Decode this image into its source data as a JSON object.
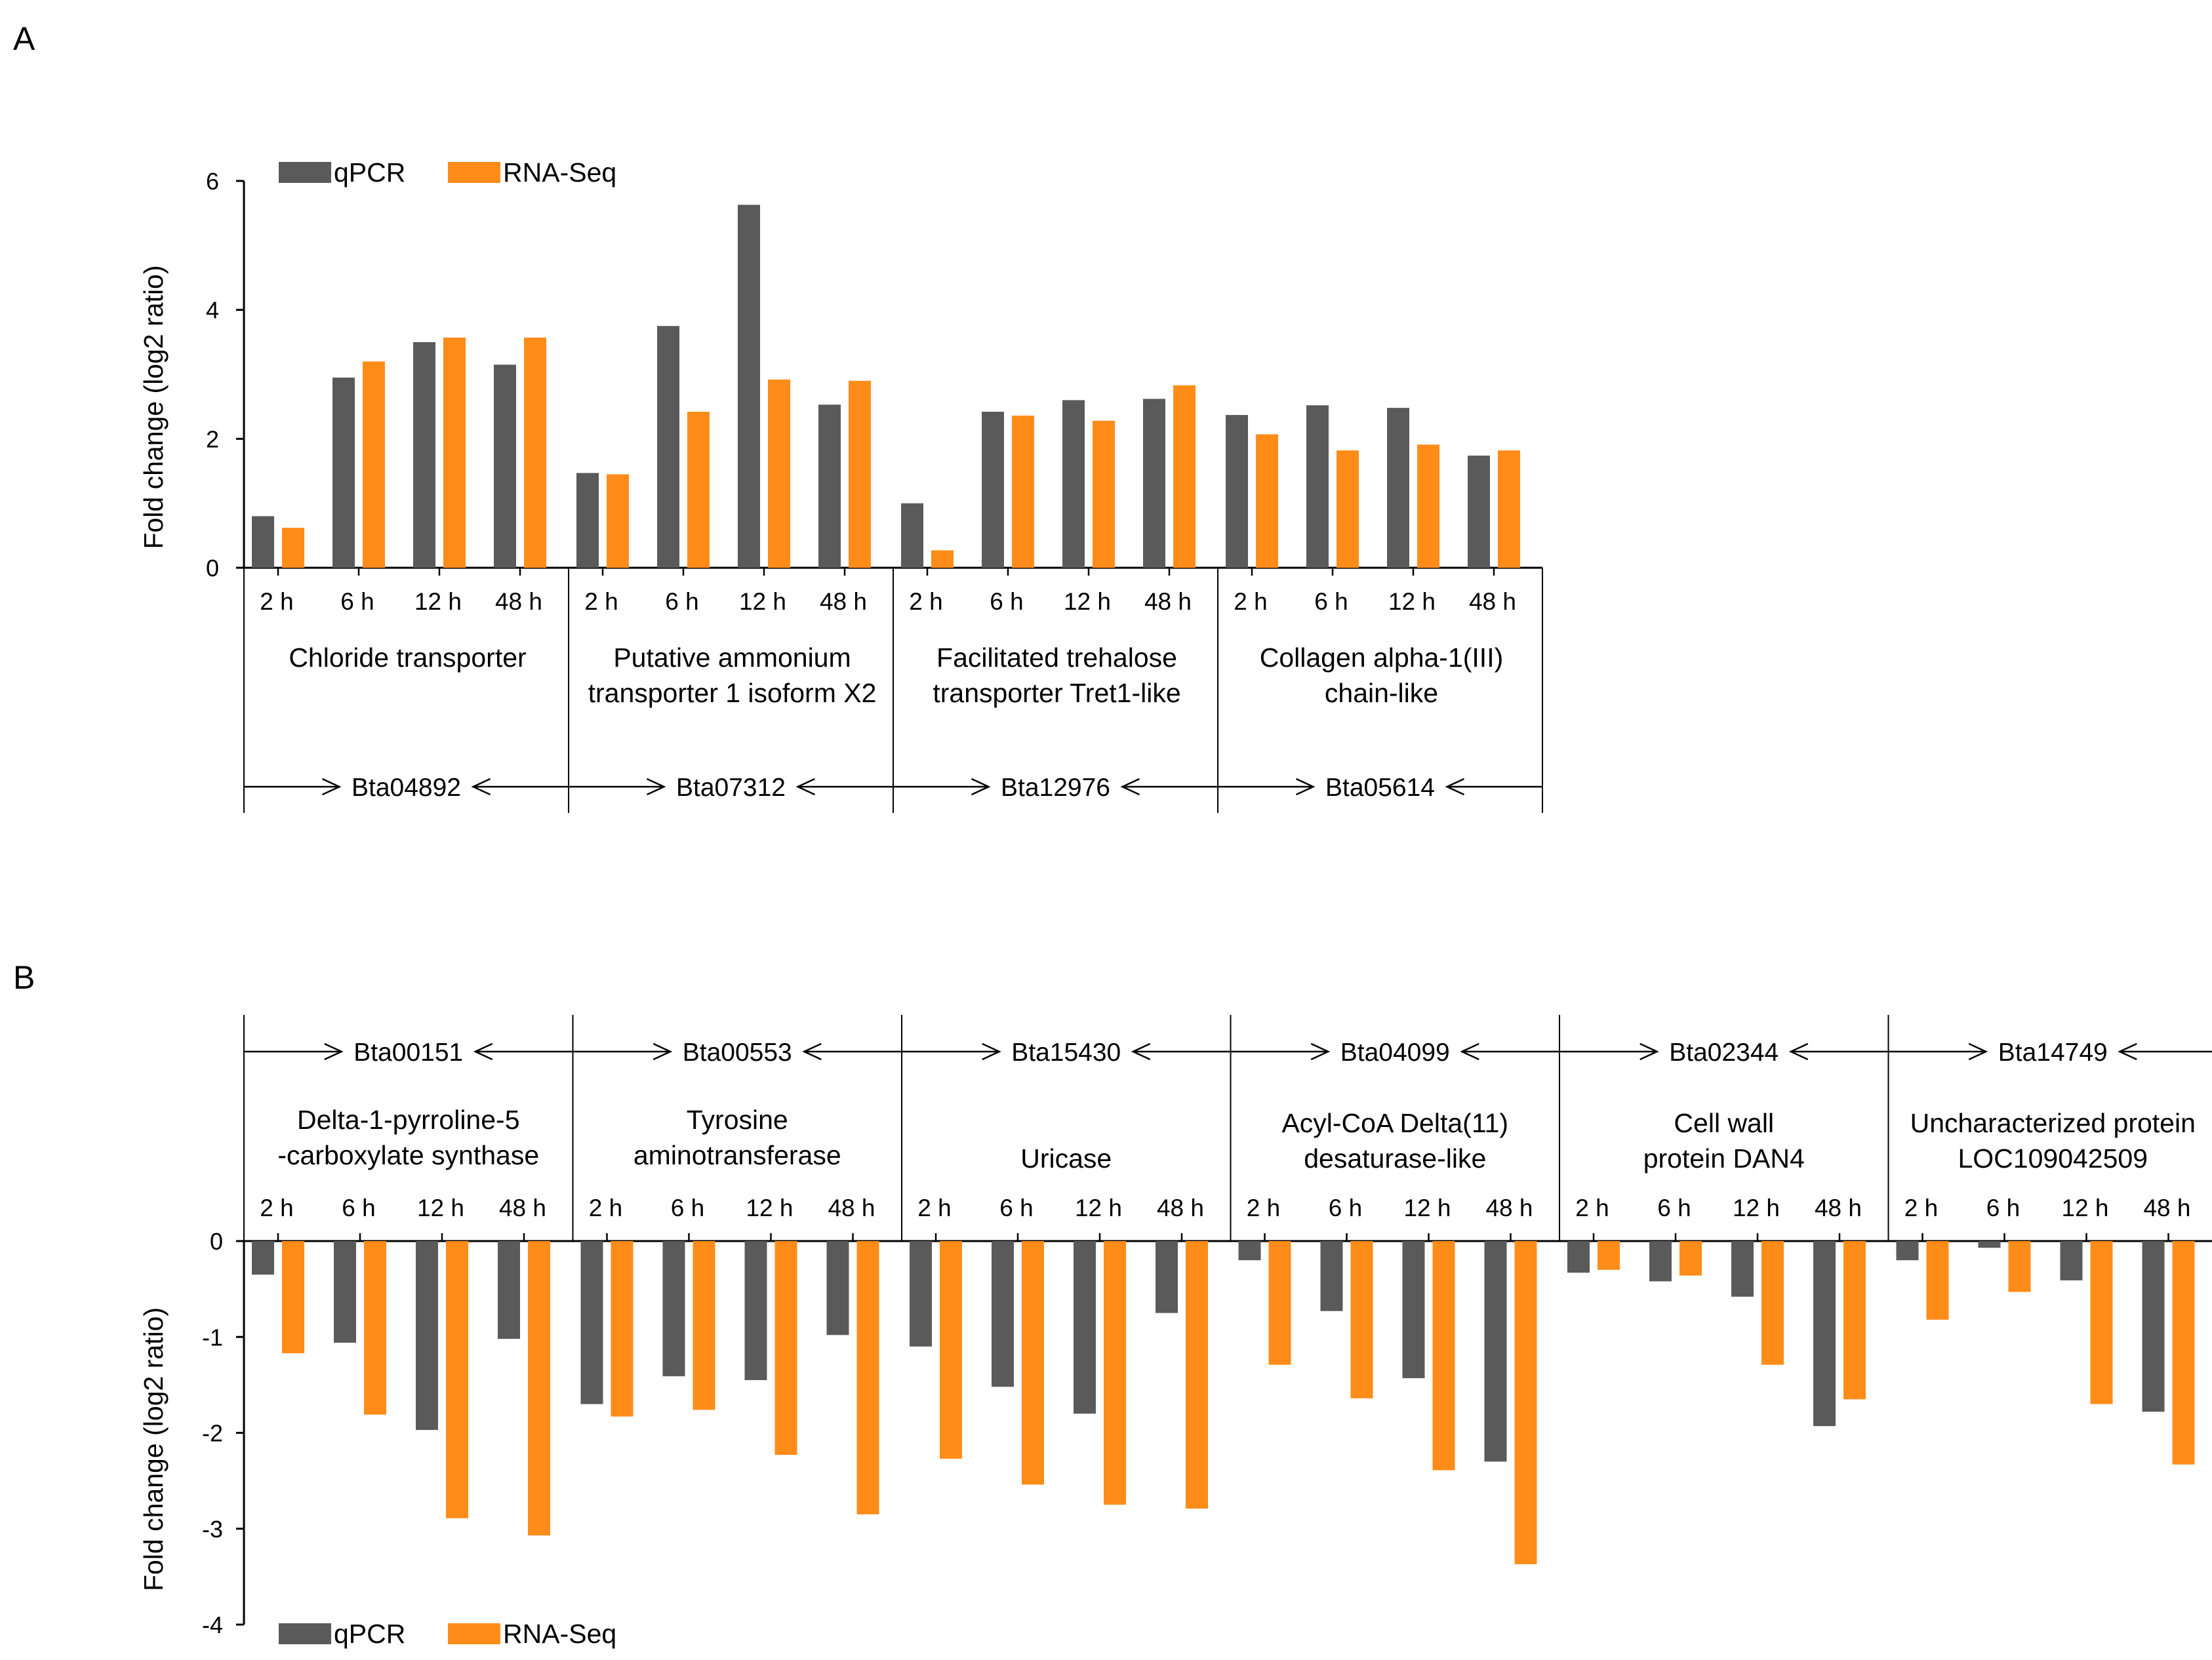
{
  "chart_data": [
    {
      "panel": "A",
      "type": "bar",
      "ylabel": "Fold change (log2 ratio)",
      "ylim": [
        0,
        6
      ],
      "yticks": [
        0,
        2,
        4,
        6
      ],
      "legend": [
        "qPCR",
        "RNA-Seq"
      ],
      "legend_position": "top-left",
      "colors": {
        "qPCR": "#5a5a5a",
        "RNA-Seq": "#ff8c19"
      },
      "timepoints": [
        "2 h",
        "6 h",
        "12 h",
        "48 h"
      ],
      "groups": [
        {
          "gene": "Bta04892",
          "description": [
            "Chloride transporter"
          ],
          "qPCR": [
            0.8,
            2.95,
            3.5,
            3.15
          ],
          "RNA-Seq": [
            0.62,
            3.2,
            3.57,
            3.57
          ]
        },
        {
          "gene": "Bta07312",
          "description": [
            "Putative ammonium",
            "transporter 1 isoform X2"
          ],
          "qPCR": [
            1.47,
            3.75,
            5.63,
            2.53
          ],
          "RNA-Seq": [
            1.45,
            2.42,
            2.92,
            2.9
          ]
        },
        {
          "gene": "Bta12976",
          "description": [
            "Facilitated trehalose",
            "transporter Tret1-like"
          ],
          "qPCR": [
            1.0,
            2.42,
            2.6,
            2.62
          ],
          "RNA-Seq": [
            0.27,
            2.36,
            2.28,
            2.83
          ]
        },
        {
          "gene": "Bta05614",
          "description": [
            "Collagen alpha-1(III)",
            "chain-like"
          ],
          "qPCR": [
            2.37,
            2.52,
            2.48,
            1.74
          ],
          "RNA-Seq": [
            2.07,
            1.82,
            1.91,
            1.82
          ]
        }
      ]
    },
    {
      "panel": "B",
      "type": "bar",
      "ylabel": "Fold change (log2 ratio)",
      "ylim": [
        -4,
        0
      ],
      "yticks": [
        0,
        -1,
        -2,
        -3,
        -4
      ],
      "legend": [
        "qPCR",
        "RNA-Seq"
      ],
      "legend_position": "bottom-left",
      "colors": {
        "qPCR": "#5a5a5a",
        "RNA-Seq": "#ff8c19"
      },
      "timepoints": [
        "2 h",
        "6 h",
        "12 h",
        "48 h"
      ],
      "groups": [
        {
          "gene": "Bta00151",
          "description": [
            "Delta-1-pyrroline-5",
            "-carboxylate synthase"
          ],
          "qPCR": [
            -0.35,
            -1.06,
            -1.97,
            -1.02
          ],
          "RNA-Seq": [
            -1.17,
            -1.81,
            -2.89,
            -3.07
          ]
        },
        {
          "gene": "Bta00553",
          "description": [
            "Tyrosine",
            "aminotransferase"
          ],
          "qPCR": [
            -1.7,
            -1.41,
            -1.45,
            -0.98
          ],
          "RNA-Seq": [
            -1.83,
            -1.76,
            -2.23,
            -2.85
          ]
        },
        {
          "gene": "Bta15430",
          "description": [
            "Uricase"
          ],
          "qPCR": [
            -1.1,
            -1.52,
            -1.8,
            -0.75
          ],
          "RNA-Seq": [
            -2.27,
            -2.54,
            -2.75,
            -2.79
          ]
        },
        {
          "gene": "Bta04099",
          "description": [
            "Acyl-CoA Delta(11)",
            "desaturase-like"
          ],
          "qPCR": [
            -0.2,
            -0.73,
            -1.43,
            -2.3
          ],
          "RNA-Seq": [
            -1.29,
            -1.64,
            -2.39,
            -3.37
          ]
        },
        {
          "gene": "Bta02344",
          "description": [
            "Cell wall",
            "protein DAN4"
          ],
          "qPCR": [
            -0.33,
            -0.42,
            -0.58,
            -1.93
          ],
          "RNA-Seq": [
            -0.3,
            -0.36,
            -1.29,
            -1.65
          ]
        },
        {
          "gene": "Bta14749",
          "description": [
            "Uncharacterized protein",
            "LOC109042509"
          ],
          "qPCR": [
            -0.2,
            -0.07,
            -0.41,
            -1.78
          ],
          "RNA-Seq": [
            -0.82,
            -0.53,
            -1.7,
            -2.33
          ]
        }
      ]
    }
  ],
  "panel_labels": [
    "A",
    "B"
  ]
}
